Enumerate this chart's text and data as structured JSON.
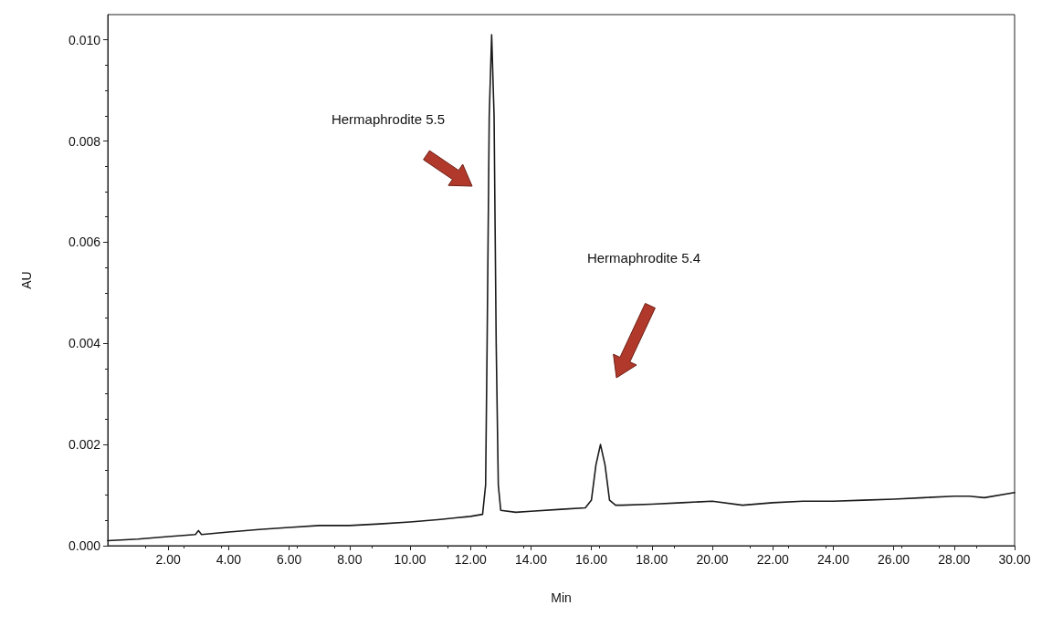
{
  "chart_data": {
    "type": "line",
    "xlabel": "Min",
    "ylabel": "AU",
    "x": [
      0,
      1,
      2,
      2.9,
      3.0,
      3.1,
      4,
      5,
      6,
      7,
      8,
      9,
      10,
      11,
      11.5,
      12,
      12.4,
      12.5,
      12.55,
      12.62,
      12.7,
      12.78,
      12.85,
      12.92,
      13.0,
      13.5,
      14,
      15,
      15.8,
      16.0,
      16.15,
      16.3,
      16.45,
      16.6,
      16.8,
      17,
      18,
      19,
      20,
      21,
      22,
      23,
      24,
      25,
      26,
      27,
      28,
      28.5,
      29,
      30
    ],
    "series": [
      {
        "color": "#1a1a1a",
        "values": [
          0.0001,
          0.00013,
          0.00018,
          0.00022,
          0.0003,
          0.00022,
          0.00027,
          0.00032,
          0.00036,
          0.0004,
          0.0004,
          0.00043,
          0.00047,
          0.00052,
          0.00055,
          0.00058,
          0.00062,
          0.0012,
          0.004,
          0.0085,
          0.0101,
          0.0085,
          0.004,
          0.0012,
          0.0007,
          0.00066,
          0.00068,
          0.00072,
          0.00075,
          0.0009,
          0.0016,
          0.002,
          0.0016,
          0.0009,
          0.0008,
          0.0008,
          0.00082,
          0.00085,
          0.00088,
          0.0008,
          0.00085,
          0.00088,
          0.00088,
          0.0009,
          0.00092,
          0.00095,
          0.00098,
          0.00098,
          0.00095,
          0.00105
        ]
      }
    ],
    "xlim": [
      0,
      30
    ],
    "xticks": [
      {
        "value": 2,
        "label": "2.00"
      },
      {
        "value": 4,
        "label": "4.00"
      },
      {
        "value": 6,
        "label": "6.00"
      },
      {
        "value": 8,
        "label": "8.00"
      },
      {
        "value": 10,
        "label": "10.00"
      },
      {
        "value": 12,
        "label": "12.00"
      },
      {
        "value": 14,
        "label": "14.00"
      },
      {
        "value": 16,
        "label": "16.00"
      },
      {
        "value": 18,
        "label": "18.00"
      },
      {
        "value": 20,
        "label": "20.00"
      },
      {
        "value": 22,
        "label": "22.00"
      },
      {
        "value": 24,
        "label": "24.00"
      },
      {
        "value": 26,
        "label": "26.00"
      },
      {
        "value": 28,
        "label": "28.00"
      },
      {
        "value": 30,
        "label": "30.00"
      }
    ],
    "ylim": [
      0,
      0.0105
    ],
    "yticks": [
      {
        "value": 0,
        "label": "0.000"
      },
      {
        "value": 0.002,
        "label": "0.002"
      },
      {
        "value": 0.004,
        "label": "0.004"
      },
      {
        "value": 0.006,
        "label": "0.006"
      },
      {
        "value": 0.008,
        "label": "0.008"
      },
      {
        "value": 0.01,
        "label": "0.010"
      }
    ],
    "grid": false,
    "marker": "none",
    "line_style": "solid",
    "annotations": [
      "Hermaphrodite 5.5",
      "Hermaphrodite 5.4"
    ]
  }
}
